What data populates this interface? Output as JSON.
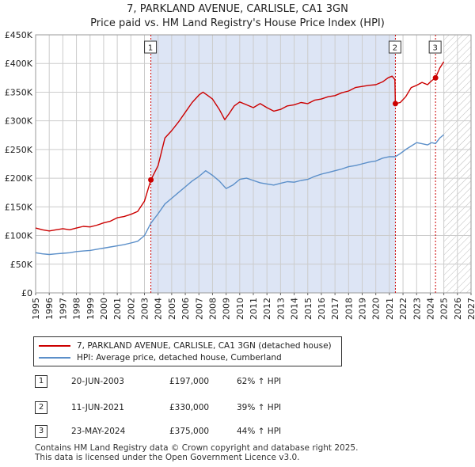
{
  "header": {
    "title": "7, PARKLAND AVENUE, CARLISLE, CA1 3GN",
    "subtitle": "Price paid vs. HM Land Registry's House Price Index (HPI)"
  },
  "colors": {
    "property": "#cc0000",
    "hpi": "#5b8fc9",
    "shade": "#dde5f5",
    "marker_line": "#cc0000",
    "grid": "#cccccc"
  },
  "chart_data": {
    "type": "line",
    "title": "Price paid vs. HM Land Registry's House Price Index (HPI)",
    "xlim": [
      1995,
      2027
    ],
    "ylim": [
      0,
      450000
    ],
    "x_ticks": [
      "1995",
      "1996",
      "1997",
      "1998",
      "1999",
      "2000",
      "2001",
      "2002",
      "2003",
      "2004",
      "2005",
      "2006",
      "2007",
      "2008",
      "2009",
      "2010",
      "2011",
      "2012",
      "2013",
      "2014",
      "2015",
      "2016",
      "2017",
      "2018",
      "2019",
      "2020",
      "2021",
      "2022",
      "2023",
      "2024",
      "2025",
      "2026",
      "2027"
    ],
    "y_ticks": [
      {
        "value": 0,
        "label": "£0"
      },
      {
        "value": 50000,
        "label": "£50K"
      },
      {
        "value": 100000,
        "label": "£100K"
      },
      {
        "value": 150000,
        "label": "£150K"
      },
      {
        "value": 200000,
        "label": "£200K"
      },
      {
        "value": 250000,
        "label": "£250K"
      },
      {
        "value": 300000,
        "label": "£300K"
      },
      {
        "value": 350000,
        "label": "£350K"
      },
      {
        "value": 400000,
        "label": "£400K"
      },
      {
        "value": 450000,
        "label": "£450K"
      }
    ],
    "shaded_period": [
      2003.47,
      2021.44
    ],
    "future_hatch_from": 2025.0,
    "series": [
      {
        "name": "7, PARKLAND AVENUE, CARLISLE, CA1 3GN (detached house)",
        "color": "#cc0000",
        "points": [
          [
            1995.0,
            113000
          ],
          [
            1995.5,
            110000
          ],
          [
            1996.0,
            108000
          ],
          [
            1996.5,
            110000
          ],
          [
            1997.0,
            112000
          ],
          [
            1997.5,
            110000
          ],
          [
            1998.0,
            113000
          ],
          [
            1998.5,
            116000
          ],
          [
            1999.0,
            115000
          ],
          [
            1999.5,
            118000
          ],
          [
            2000.0,
            122000
          ],
          [
            2000.5,
            125000
          ],
          [
            2001.0,
            131000
          ],
          [
            2001.5,
            133000
          ],
          [
            2002.0,
            137000
          ],
          [
            2002.5,
            142000
          ],
          [
            2003.0,
            160000
          ],
          [
            2003.47,
            197000
          ],
          [
            2004.0,
            222000
          ],
          [
            2004.5,
            270000
          ],
          [
            2005.0,
            283000
          ],
          [
            2005.5,
            298000
          ],
          [
            2006.0,
            315000
          ],
          [
            2006.5,
            332000
          ],
          [
            2007.0,
            345000
          ],
          [
            2007.3,
            350000
          ],
          [
            2007.6,
            345000
          ],
          [
            2008.0,
            338000
          ],
          [
            2008.5,
            320000
          ],
          [
            2008.9,
            302000
          ],
          [
            2009.2,
            312000
          ],
          [
            2009.6,
            326000
          ],
          [
            2010.0,
            333000
          ],
          [
            2010.5,
            328000
          ],
          [
            2011.0,
            323000
          ],
          [
            2011.5,
            330000
          ],
          [
            2012.0,
            323000
          ],
          [
            2012.5,
            317000
          ],
          [
            2013.0,
            320000
          ],
          [
            2013.5,
            326000
          ],
          [
            2014.0,
            328000
          ],
          [
            2014.5,
            332000
          ],
          [
            2015.0,
            330000
          ],
          [
            2015.5,
            336000
          ],
          [
            2016.0,
            338000
          ],
          [
            2016.5,
            342000
          ],
          [
            2017.0,
            344000
          ],
          [
            2017.5,
            349000
          ],
          [
            2018.0,
            352000
          ],
          [
            2018.5,
            358000
          ],
          [
            2019.0,
            360000
          ],
          [
            2019.5,
            362000
          ],
          [
            2020.0,
            363000
          ],
          [
            2020.5,
            368000
          ],
          [
            2020.9,
            375000
          ],
          [
            2021.2,
            378000
          ],
          [
            2021.4,
            372000
          ],
          [
            2021.44,
            330000
          ],
          [
            2021.8,
            332000
          ],
          [
            2022.2,
            342000
          ],
          [
            2022.6,
            358000
          ],
          [
            2023.0,
            362000
          ],
          [
            2023.4,
            367000
          ],
          [
            2023.8,
            363000
          ],
          [
            2024.1,
            370000
          ],
          [
            2024.39,
            375000
          ],
          [
            2024.7,
            392000
          ],
          [
            2025.0,
            403000
          ]
        ]
      },
      {
        "name": "HPI: Average price, detached house, Cumberland",
        "color": "#5b8fc9",
        "points": [
          [
            1995.0,
            70000
          ],
          [
            1995.5,
            68000
          ],
          [
            1996.0,
            67000
          ],
          [
            1996.5,
            68000
          ],
          [
            1997.0,
            69000
          ],
          [
            1997.5,
            70000
          ],
          [
            1998.0,
            72000
          ],
          [
            1998.5,
            73000
          ],
          [
            1999.0,
            74000
          ],
          [
            1999.5,
            76000
          ],
          [
            2000.0,
            78000
          ],
          [
            2000.5,
            80000
          ],
          [
            2001.0,
            82000
          ],
          [
            2001.5,
            84000
          ],
          [
            2002.0,
            87000
          ],
          [
            2002.5,
            90000
          ],
          [
            2003.0,
            100000
          ],
          [
            2003.47,
            121600
          ],
          [
            2004.0,
            138000
          ],
          [
            2004.5,
            155000
          ],
          [
            2005.0,
            165000
          ],
          [
            2005.5,
            175000
          ],
          [
            2006.0,
            185000
          ],
          [
            2006.5,
            195000
          ],
          [
            2007.0,
            203000
          ],
          [
            2007.5,
            213000
          ],
          [
            2008.0,
            205000
          ],
          [
            2008.5,
            195000
          ],
          [
            2009.0,
            182000
          ],
          [
            2009.5,
            188000
          ],
          [
            2010.0,
            198000
          ],
          [
            2010.5,
            200000
          ],
          [
            2011.0,
            196000
          ],
          [
            2011.5,
            192000
          ],
          [
            2012.0,
            190000
          ],
          [
            2012.5,
            188000
          ],
          [
            2013.0,
            191000
          ],
          [
            2013.5,
            194000
          ],
          [
            2014.0,
            193000
          ],
          [
            2014.5,
            196000
          ],
          [
            2015.0,
            198000
          ],
          [
            2015.5,
            203000
          ],
          [
            2016.0,
            207000
          ],
          [
            2016.5,
            210000
          ],
          [
            2017.0,
            213000
          ],
          [
            2017.5,
            216000
          ],
          [
            2018.0,
            220000
          ],
          [
            2018.5,
            222000
          ],
          [
            2019.0,
            225000
          ],
          [
            2019.5,
            228000
          ],
          [
            2020.0,
            230000
          ],
          [
            2020.5,
            235000
          ],
          [
            2021.0,
            237500
          ],
          [
            2021.44,
            237400
          ],
          [
            2021.8,
            243000
          ],
          [
            2022.2,
            250000
          ],
          [
            2022.6,
            256000
          ],
          [
            2023.0,
            262000
          ],
          [
            2023.4,
            260000
          ],
          [
            2023.8,
            258000
          ],
          [
            2024.1,
            262000
          ],
          [
            2024.39,
            260400
          ],
          [
            2024.7,
            270000
          ],
          [
            2025.0,
            276000
          ]
        ]
      }
    ],
    "markers": [
      {
        "label": "1",
        "x": 2003.47,
        "y": 197000
      },
      {
        "label": "2",
        "x": 2021.44,
        "y": 330000
      },
      {
        "label": "3",
        "x": 2024.39,
        "y": 375000
      }
    ]
  },
  "legend": {
    "property_label": "7, PARKLAND AVENUE, CARLISLE, CA1 3GN (detached house)",
    "hpi_label": "HPI: Average price, detached house, Cumberland"
  },
  "transactions": [
    {
      "num": "1",
      "date": "20-JUN-2003",
      "price": "£197,000",
      "change": "62% ↑ HPI"
    },
    {
      "num": "2",
      "date": "11-JUN-2021",
      "price": "£330,000",
      "change": "39% ↑ HPI"
    },
    {
      "num": "3",
      "date": "23-MAY-2024",
      "price": "£375,000",
      "change": "44% ↑ HPI"
    }
  ],
  "footer": {
    "line1": "Contains HM Land Registry data © Crown copyright and database right 2025.",
    "line2": "This data is licensed under the Open Government Licence v3.0."
  }
}
